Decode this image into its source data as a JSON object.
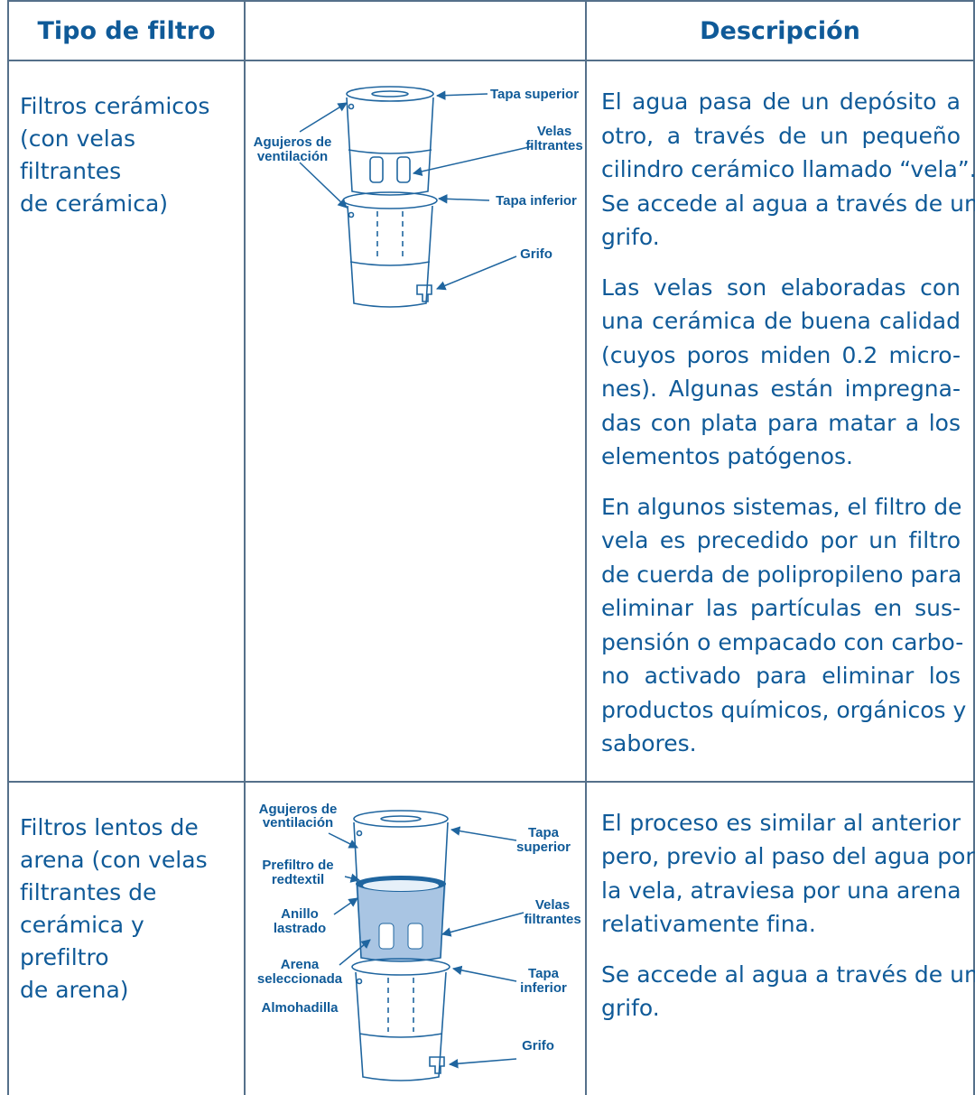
{
  "table": {
    "headers": {
      "type": "Tipo de filtro",
      "description": "Descripción"
    },
    "rows": [
      {
        "type": [
          "Filtros cerámicos",
          "(con velas filtrantes",
          "de cerámica)"
        ],
        "diagram": {
          "labels": [
            [
              "Tapa superior"
            ],
            [
              "Agujeros de",
              "ventilación"
            ],
            [
              "Velas",
              "filtrantes"
            ],
            [
              "Tapa inferior"
            ],
            [
              "Grifo"
            ]
          ]
        },
        "description": [
          [
            "El agua pasa de un depósito a",
            "otro, a través de un pequeño",
            "cilindro cerámico llamado “vela”.",
            "Se accede al agua a través de un",
            "grifo."
          ],
          [
            "Las velas son elaboradas con",
            "una cerámica de buena calidad",
            "(cuyos poros miden 0.2 micro-",
            "nes). Algunas están impregna-",
            "das con plata para matar a los",
            "elementos patógenos."
          ],
          [
            "En algunos sistemas, el filtro de",
            "vela es precedido por un filtro",
            "de cuerda de polipropileno para",
            "eliminar las partículas en sus-",
            "pensión o empacado con carbo-",
            "no activado para eliminar los",
            "productos químicos, orgánicos y",
            "sabores."
          ]
        ]
      },
      {
        "type": [
          "Filtros lentos de",
          "arena (con velas",
          "filtrantes de",
          "cerámica y prefiltro",
          "de arena)"
        ],
        "diagram": {
          "labels": [
            [
              "Agujeros de",
              "ventilación"
            ],
            [
              "Tapa",
              "superior"
            ],
            [
              "Prefiltro de",
              "redtextil"
            ],
            [
              "Velas",
              "filtrantes"
            ],
            [
              "Anillo",
              "lastrado"
            ],
            [
              "Tapa",
              "inferior"
            ],
            [
              "Arena",
              "seleccionada"
            ],
            [
              "Almohadilla"
            ],
            [
              "Grifo"
            ]
          ]
        },
        "description": [
          [
            "El proceso es similar al anterior",
            "pero, previo al paso del agua por",
            "la vela, atraviesa por una arena",
            "relativamente fina."
          ],
          [
            "Se accede al agua a través de un",
            "grifo."
          ]
        ]
      }
    ]
  }
}
